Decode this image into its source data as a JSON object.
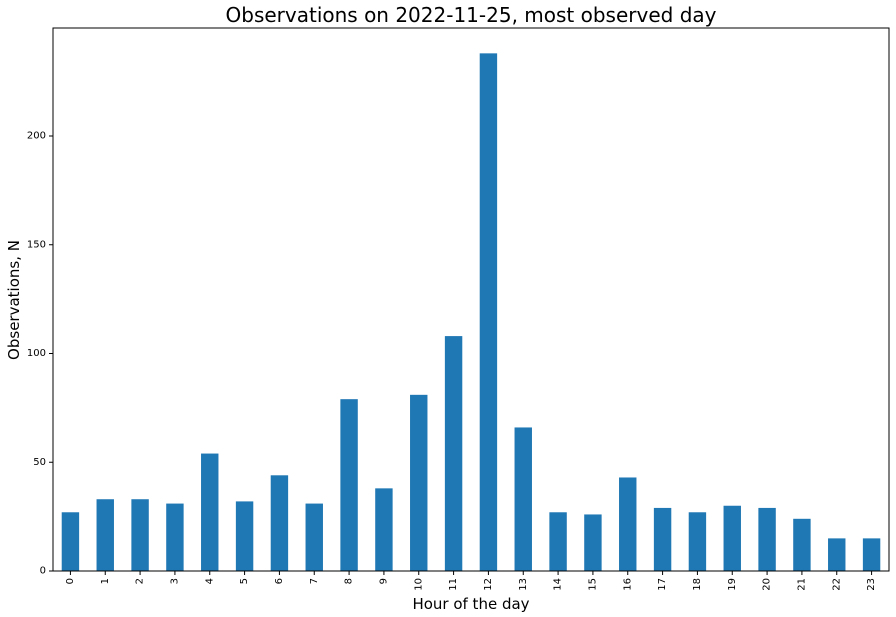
{
  "chart_data": {
    "type": "bar",
    "title": "Observations on 2022-11-25, most observed day",
    "xlabel": "Hour of the day",
    "ylabel": "Observations, N",
    "categories": [
      "0",
      "1",
      "2",
      "3",
      "4",
      "5",
      "6",
      "7",
      "8",
      "9",
      "10",
      "11",
      "12",
      "13",
      "14",
      "15",
      "16",
      "17",
      "18",
      "19",
      "20",
      "21",
      "22",
      "23"
    ],
    "values": [
      27,
      33,
      33,
      31,
      54,
      32,
      44,
      31,
      79,
      38,
      81,
      108,
      238,
      66,
      27,
      26,
      43,
      29,
      27,
      30,
      29,
      24,
      15,
      15
    ],
    "ylim": [
      0,
      250
    ],
    "yticks": [
      0,
      50,
      100,
      150,
      200
    ],
    "ytick_labels": [
      "0",
      "50",
      "100",
      "150",
      "200"
    ],
    "grid": false,
    "legend": "none",
    "bar_color": "#1f77b4"
  }
}
